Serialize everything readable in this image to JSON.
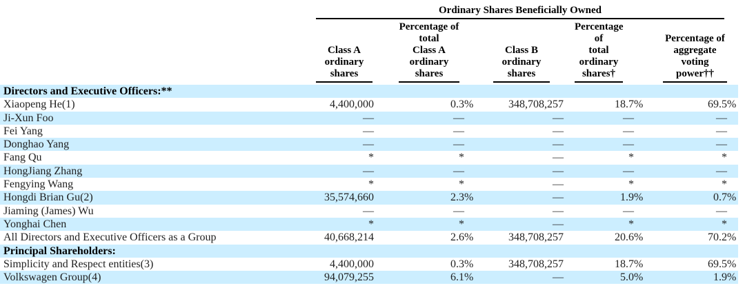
{
  "colors": {
    "row_highlight": "#cceeff",
    "text": "#1f1f1f",
    "rule": "#000000"
  },
  "table": {
    "title": "Ordinary Shares Beneficially Owned",
    "columns": [
      {
        "id": "class-a-shares",
        "label": "Class A\nordinary\nshares"
      },
      {
        "id": "pct-class-a",
        "label": "Percentage of\ntotal\nClass A\nordinary\nshares"
      },
      {
        "id": "class-b-shares",
        "label": "Class B\nordinary\nshares"
      },
      {
        "id": "pct-total-ordinary",
        "label": "Percentage\nof\ntotal\nordinary\nshares†"
      },
      {
        "id": "pct-voting-power",
        "label": "Percentage of\naggregate\nvoting\npower††"
      }
    ],
    "rows": [
      {
        "name": "Directors and Executive Officers:**",
        "section": true,
        "highlighted": true,
        "values": [
          "",
          "",
          "",
          "",
          ""
        ]
      },
      {
        "name": "Xiaopeng He(1)",
        "section": false,
        "highlighted": false,
        "values": [
          "4,400,000",
          "0.3%",
          "348,708,257",
          "18.7%",
          "69.5%"
        ]
      },
      {
        "name": "Ji-Xun Foo",
        "section": false,
        "highlighted": true,
        "values": [
          "—",
          "—",
          "—",
          "—",
          "—"
        ]
      },
      {
        "name": "Fei Yang",
        "section": false,
        "highlighted": false,
        "values": [
          "—",
          "—",
          "—",
          "—",
          "—"
        ]
      },
      {
        "name": "Donghao Yang",
        "section": false,
        "highlighted": true,
        "values": [
          "—",
          "—",
          "—",
          "—",
          "—"
        ]
      },
      {
        "name": "Fang Qu",
        "section": false,
        "highlighted": false,
        "values": [
          "*",
          "*",
          "—",
          "*",
          "*"
        ]
      },
      {
        "name": "HongJiang Zhang",
        "section": false,
        "highlighted": true,
        "values": [
          "—",
          "—",
          "—",
          "—",
          "—"
        ]
      },
      {
        "name": "Fengying Wang",
        "section": false,
        "highlighted": false,
        "values": [
          "*",
          "*",
          "—",
          "*",
          "*"
        ]
      },
      {
        "name": "Hongdi Brian Gu(2)",
        "section": false,
        "highlighted": true,
        "values": [
          "35,574,660",
          "2.3%",
          "—",
          "1.9%",
          "0.7%"
        ]
      },
      {
        "name": "Jiaming (James) Wu",
        "section": false,
        "highlighted": false,
        "values": [
          "—",
          "—",
          "—",
          "—",
          "—"
        ]
      },
      {
        "name": "Yonghai Chen",
        "section": false,
        "highlighted": true,
        "values": [
          "*",
          "*",
          "—",
          "*",
          "*"
        ]
      },
      {
        "name": "All Directors and Executive Officers as a Group",
        "section": false,
        "highlighted": false,
        "values": [
          "40,668,214",
          "2.6%",
          "348,708,257",
          "20.6%",
          "70.2%"
        ]
      },
      {
        "name": "Principal Shareholders:",
        "section": true,
        "highlighted": true,
        "values": [
          "",
          "",
          "",
          "",
          ""
        ]
      },
      {
        "name": "Simplicity and Respect entities(3)",
        "section": false,
        "highlighted": false,
        "values": [
          "4,400,000",
          "0.3%",
          "348,708,257",
          "18.7%",
          "69.5%"
        ]
      },
      {
        "name": "Volkswagen Group(4)",
        "section": false,
        "highlighted": true,
        "values": [
          "94,079,255",
          "6.1%",
          "—",
          "5.0%",
          "1.9%"
        ]
      }
    ]
  }
}
